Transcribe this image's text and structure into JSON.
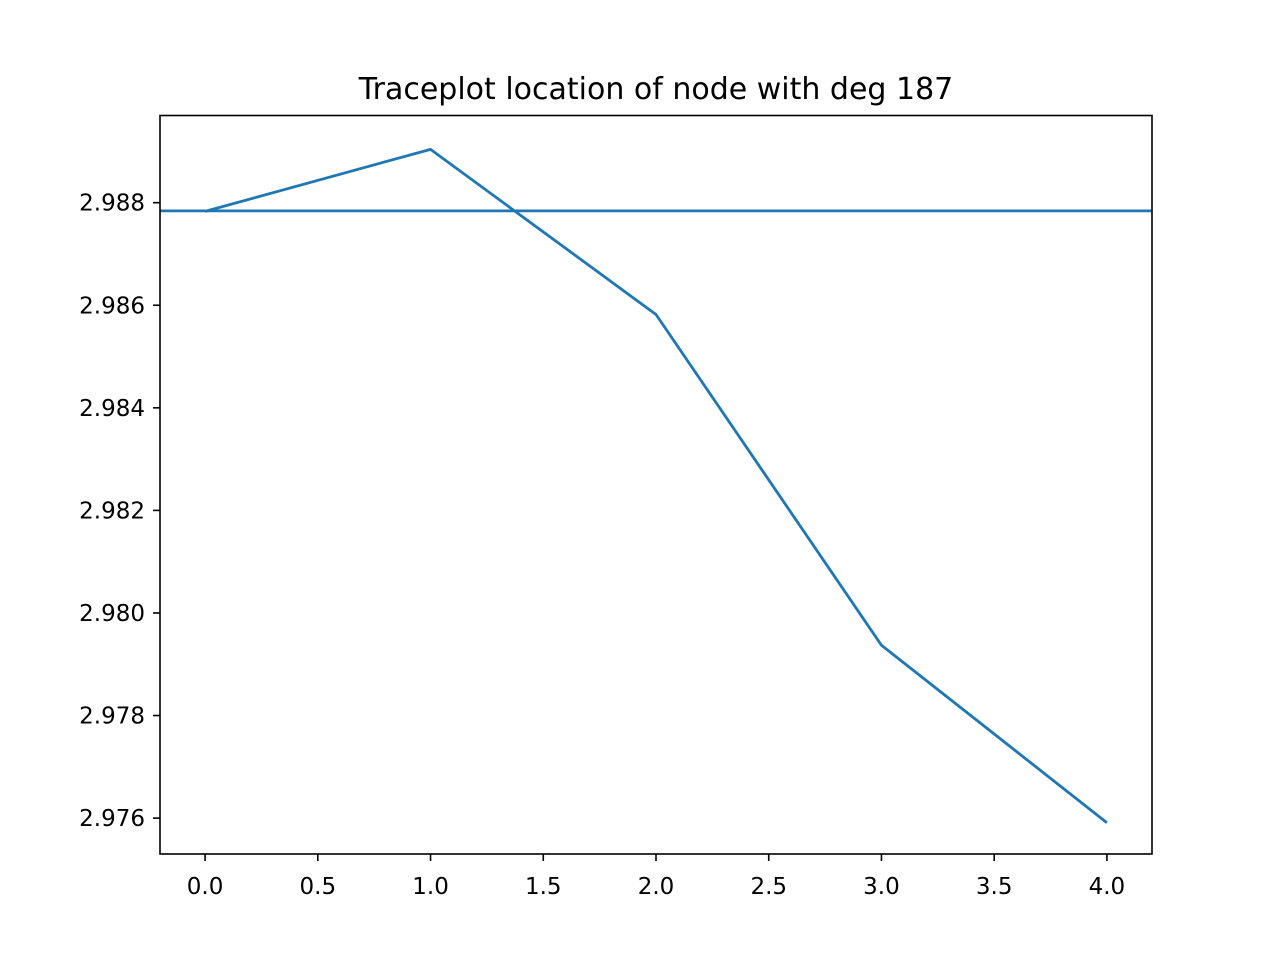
{
  "chart_data": {
    "type": "line",
    "title": "Traceplot location of node with deg 187",
    "xlabel": "",
    "ylabel": "",
    "xlim": [
      -0.2,
      4.2
    ],
    "ylim": [
      2.9753,
      2.9897
    ],
    "x_ticks": [
      0.0,
      0.5,
      1.0,
      1.5,
      2.0,
      2.5,
      3.0,
      3.5,
      4.0
    ],
    "x_tick_labels": [
      "0.0",
      "0.5",
      "1.0",
      "1.5",
      "2.0",
      "2.5",
      "3.0",
      "3.5",
      "4.0"
    ],
    "y_ticks": [
      2.976,
      2.978,
      2.98,
      2.982,
      2.984,
      2.986,
      2.988
    ],
    "y_tick_labels": [
      "2.976",
      "2.978",
      "2.980",
      "2.982",
      "2.984",
      "2.986",
      "2.988"
    ],
    "grid": false,
    "legend": "none",
    "series": [
      {
        "x": [
          0,
          1,
          2,
          3,
          4
        ],
        "values": [
          2.98783,
          2.98904,
          2.98582,
          2.97937,
          2.97591
        ],
        "color": "#1f77b4"
      }
    ],
    "hlines": [
      {
        "y": 2.98784,
        "color": "#1f77b4"
      }
    ]
  }
}
